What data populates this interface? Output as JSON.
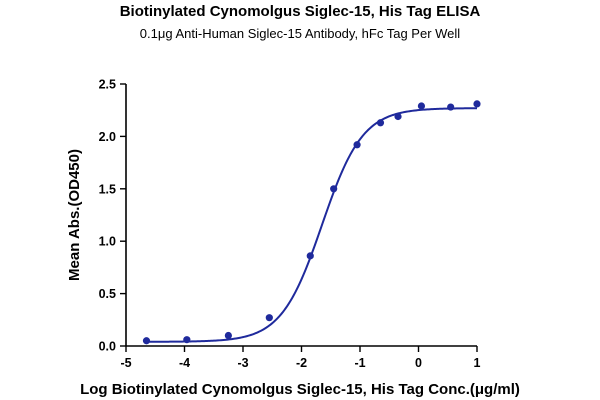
{
  "colors": {
    "series": "#1f2a9c",
    "axis": "#000000",
    "background": "#ffffff"
  },
  "chart_data": {
    "type": "scatter",
    "title": "Biotinylated Cynomolgus Siglec-15, His Tag ELISA",
    "subtitle": "0.1μg Anti-Human Siglec-15 Antibody, hFc Tag Per Well",
    "xlabel": "Log Biotinylated Cynomolgus Siglec-15, His Tag Conc.(μg/ml)",
    "ylabel": "Mean Abs.(OD450)",
    "xlim": [
      -5,
      1
    ],
    "ylim": [
      0,
      2.5
    ],
    "xticks": [
      -5,
      -4,
      -3,
      -2,
      -1,
      0,
      1
    ],
    "xtick_labels": [
      "-5",
      "-4",
      "-3",
      "-2",
      "-1",
      "0",
      "1"
    ],
    "yticks": [
      0,
      0.5,
      1,
      1.5,
      2,
      2.5
    ],
    "ytick_labels": [
      "0.0",
      "0.5",
      "1.0",
      "1.5",
      "2.0",
      "2.5"
    ],
    "grid": false,
    "legend": "none",
    "series": [
      {
        "x": [
          -4.65,
          -3.96,
          -3.25,
          -2.55,
          -1.85,
          -1.45,
          -1.05,
          -0.65,
          -0.35,
          0.05,
          0.55,
          1.0
        ],
        "y": [
          0.05,
          0.06,
          0.1,
          0.27,
          0.86,
          1.5,
          1.92,
          2.13,
          2.19,
          2.29,
          2.28,
          2.31
        ],
        "fit": {
          "model": "4PL",
          "bottom": 0.04,
          "top": 2.27,
          "log_ec50": -1.65,
          "hill_slope": 1.25
        }
      }
    ]
  }
}
